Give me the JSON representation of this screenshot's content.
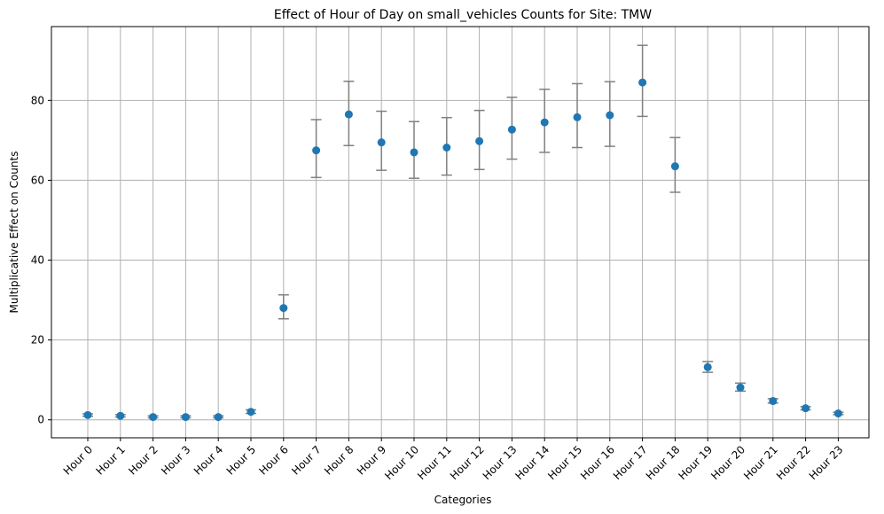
{
  "chart_data": {
    "type": "scatter",
    "title": "Effect of Hour of Day on small_vehicles Counts for Site: TMW",
    "xlabel": "Categories",
    "ylabel": "Multiplicative Effect on Counts",
    "categories": [
      "Hour 0",
      "Hour 1",
      "Hour 2",
      "Hour 3",
      "Hour 4",
      "Hour 5",
      "Hour 6",
      "Hour 7",
      "Hour 8",
      "Hour 9",
      "Hour 10",
      "Hour 11",
      "Hour 12",
      "Hour 13",
      "Hour 14",
      "Hour 15",
      "Hour 16",
      "Hour 17",
      "Hour 18",
      "Hour 19",
      "Hour 20",
      "Hour 21",
      "Hour 22",
      "Hour 23"
    ],
    "values": [
      1.2,
      1.0,
      0.7,
      0.7,
      0.7,
      2.0,
      28.0,
      67.5,
      76.5,
      69.5,
      67.0,
      68.2,
      69.8,
      72.7,
      74.5,
      75.8,
      76.3,
      84.5,
      63.5,
      13.2,
      8.1,
      4.7,
      2.9,
      1.6
    ],
    "error_low": [
      0.9,
      0.7,
      0.5,
      0.5,
      0.5,
      1.6,
      25.3,
      60.7,
      68.7,
      62.5,
      60.5,
      61.3,
      62.7,
      65.3,
      67.0,
      68.2,
      68.5,
      76.0,
      57.0,
      11.9,
      7.2,
      4.2,
      2.5,
      1.3
    ],
    "error_high": [
      1.5,
      1.3,
      1.0,
      1.0,
      1.0,
      2.5,
      31.3,
      75.2,
      84.8,
      77.3,
      74.7,
      75.7,
      77.5,
      80.8,
      82.8,
      84.2,
      84.7,
      93.8,
      70.7,
      14.6,
      9.2,
      5.3,
      3.3,
      1.9
    ],
    "yticks": [
      0,
      20,
      40,
      60,
      80
    ],
    "ylim": [
      -4.5,
      98.5
    ],
    "grid": true,
    "marker_color": "#1f77b4",
    "errorbar_color": "#808080",
    "grid_color": "#b0b0b0"
  }
}
